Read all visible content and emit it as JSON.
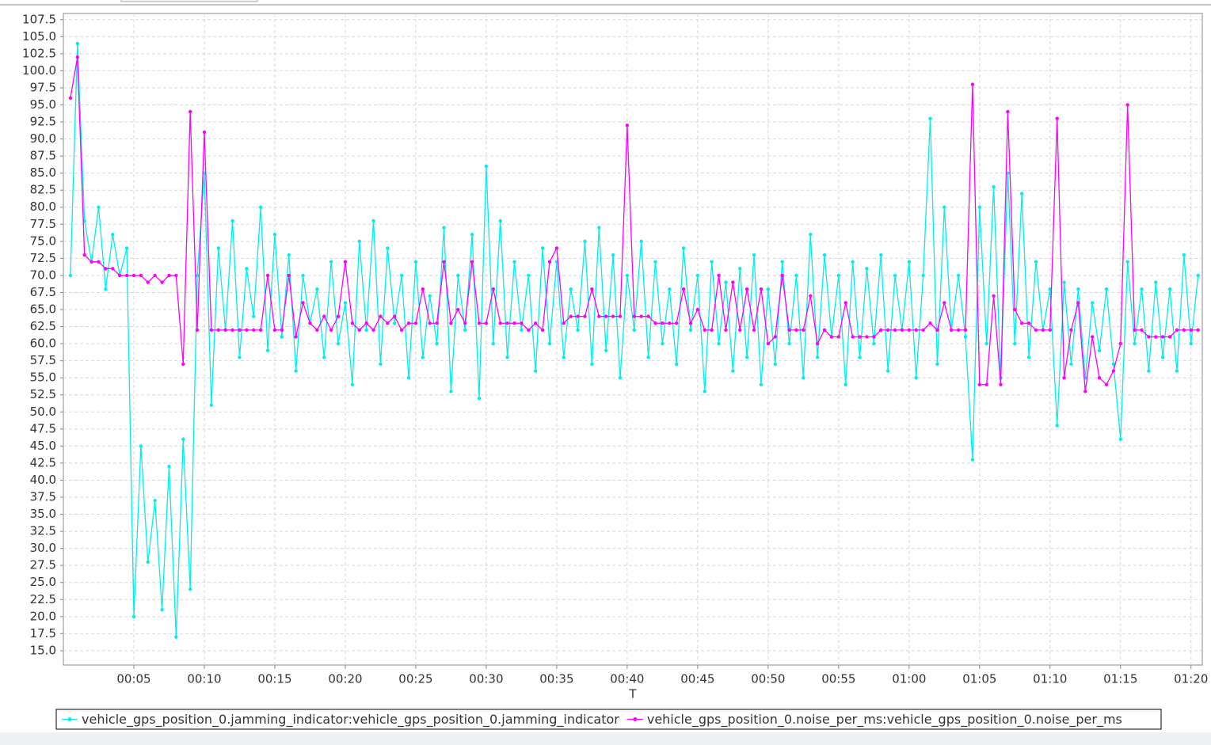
{
  "chart_data": {
    "type": "line",
    "x_label": "T",
    "xlim": [
      0,
      80.8
    ],
    "xticks": [
      {
        "value": 5,
        "label": "00:05"
      },
      {
        "value": 10,
        "label": "00:10"
      },
      {
        "value": 15,
        "label": "00:15"
      },
      {
        "value": 20,
        "label": "00:20"
      },
      {
        "value": 25,
        "label": "00:25"
      },
      {
        "value": 30,
        "label": "00:30"
      },
      {
        "value": 35,
        "label": "00:35"
      },
      {
        "value": 40,
        "label": "00:40"
      },
      {
        "value": 45,
        "label": "00:45"
      },
      {
        "value": 50,
        "label": "00:50"
      },
      {
        "value": 55,
        "label": "00:55"
      },
      {
        "value": 60,
        "label": "01:00"
      },
      {
        "value": 65,
        "label": "01:05"
      },
      {
        "value": 70,
        "label": "01:10"
      },
      {
        "value": 75,
        "label": "01:15"
      },
      {
        "value": 80,
        "label": "01:20"
      }
    ],
    "ylim": [
      12.9,
      108.4
    ],
    "yticks": [
      {
        "value": 15,
        "label": "15.0"
      },
      17.5,
      {
        "value": 20,
        "label": "20.0"
      },
      22.5,
      {
        "value": 25,
        "label": "25.0"
      },
      27.5,
      {
        "value": 30,
        "label": "30.0"
      },
      32.5,
      {
        "value": 35,
        "label": "35.0"
      },
      37.5,
      {
        "value": 40,
        "label": "40.0"
      },
      42.5,
      {
        "value": 45,
        "label": "45.0"
      },
      47.5,
      {
        "value": 50,
        "label": "50.0"
      },
      52.5,
      {
        "value": 55,
        "label": "55.0"
      },
      57.5,
      {
        "value": 60,
        "label": "60.0"
      },
      62.5,
      {
        "value": 65,
        "label": "65.0"
      },
      67.5,
      {
        "value": 70,
        "label": "70.0"
      },
      72.5,
      {
        "value": 75,
        "label": "75.0"
      },
      77.5,
      {
        "value": 80,
        "label": "80.0"
      },
      82.5,
      {
        "value": 85,
        "label": "85.0"
      },
      87.5,
      {
        "value": 90,
        "label": "90.0"
      },
      92.5,
      {
        "value": 95,
        "label": "95.0"
      },
      97.5,
      {
        "value": 100,
        "label": "100.0"
      },
      102.5,
      {
        "value": 105,
        "label": "105.0"
      },
      107.5
    ],
    "grid": true,
    "legend": "bottom",
    "x": [
      0.5,
      1,
      1.5,
      2,
      2.5,
      3,
      3.5,
      4,
      4.5,
      5,
      5.5,
      6,
      6.5,
      7,
      7.5,
      8,
      8.5,
      9,
      9.5,
      10,
      10.5,
      11,
      11.5,
      12,
      12.5,
      13,
      13.5,
      14,
      14.5,
      15,
      15.5,
      16,
      16.5,
      17,
      17.5,
      18,
      18.5,
      19,
      19.5,
      20,
      20.5,
      21,
      21.5,
      22,
      22.5,
      23,
      23.5,
      24,
      24.5,
      25,
      25.5,
      26,
      26.5,
      27,
      27.5,
      28,
      28.5,
      29,
      29.5,
      30,
      30.5,
      31,
      31.5,
      32,
      32.5,
      33,
      33.5,
      34,
      34.5,
      35,
      35.5,
      36,
      36.5,
      37,
      37.5,
      38,
      38.5,
      39,
      39.5,
      40,
      40.5,
      41,
      41.5,
      42,
      42.5,
      43,
      43.5,
      44,
      44.5,
      45,
      45.5,
      46,
      46.5,
      47,
      47.5,
      48,
      48.5,
      49,
      49.5,
      50,
      50.5,
      51,
      51.5,
      52,
      52.5,
      53,
      53.5,
      54,
      54.5,
      55,
      55.5,
      56,
      56.5,
      57,
      57.5,
      58,
      58.5,
      59,
      59.5,
      60,
      60.5,
      61,
      61.5,
      62,
      62.5,
      63,
      63.5,
      64,
      64.5,
      65,
      65.5,
      66,
      66.5,
      67,
      67.5,
      68,
      68.5,
      69,
      69.5,
      70,
      70.5,
      71,
      71.5,
      72,
      72.5,
      73,
      73.5,
      74,
      74.5,
      75,
      75.5,
      76,
      76.5,
      77,
      77.5,
      78,
      78.5,
      79,
      79.5,
      80,
      80.5
    ],
    "series": [
      {
        "name": "vehicle_gps_position_0.jamming_indicator:vehicle_gps_position_0.jamming_indicator",
        "color": "#00eeee",
        "values": [
          70,
          104,
          78,
          72,
          80,
          68,
          76,
          70,
          74,
          20,
          45,
          28,
          37,
          21,
          42,
          17,
          46,
          24,
          70,
          85,
          51,
          74,
          62,
          78,
          58,
          71,
          64,
          80,
          59,
          76,
          61,
          73,
          56,
          70,
          63,
          68,
          58,
          72,
          60,
          66,
          54,
          75,
          62,
          78,
          57,
          74,
          63,
          70,
          55,
          72,
          58,
          67,
          60,
          77,
          53,
          70,
          62,
          76,
          52,
          86,
          60,
          78,
          58,
          72,
          62,
          70,
          56,
          74,
          60,
          72,
          58,
          68,
          62,
          75,
          57,
          77,
          59,
          73,
          55,
          70,
          62,
          75,
          58,
          72,
          60,
          68,
          57,
          74,
          62,
          70,
          53,
          72,
          60,
          69,
          56,
          71,
          58,
          73,
          54,
          68,
          57,
          72,
          60,
          70,
          55,
          76,
          58,
          73,
          61,
          70,
          54,
          72,
          58,
          71,
          60,
          73,
          56,
          70,
          62,
          72,
          55,
          70,
          93,
          57,
          80,
          62,
          70,
          61,
          43,
          80,
          60,
          83,
          55,
          85,
          60,
          82,
          58,
          72,
          62,
          68,
          48,
          69,
          57,
          68,
          55,
          66,
          59,
          68,
          57,
          46,
          72,
          60,
          68,
          56,
          69,
          58,
          68,
          56,
          73,
          60,
          70
        ]
      },
      {
        "name": "vehicle_gps_position_0.noise_per_ms:vehicle_gps_position_0.noise_per_ms",
        "color": "#ff00ff",
        "values": [
          96,
          102,
          73,
          72,
          72,
          71,
          71,
          70,
          70,
          70,
          70,
          69,
          70,
          69,
          70,
          70,
          57,
          94,
          62,
          91,
          62,
          62,
          62,
          62,
          62,
          62,
          62,
          62,
          70,
          62,
          62,
          70,
          61,
          66,
          63,
          62,
          64,
          62,
          64,
          72,
          63,
          62,
          63,
          62,
          64,
          63,
          64,
          62,
          63,
          63,
          68,
          63,
          63,
          72,
          63,
          65,
          63,
          72,
          63,
          63,
          68,
          63,
          63,
          63,
          63,
          62,
          63,
          62,
          72,
          74,
          63,
          64,
          64,
          64,
          68,
          64,
          64,
          64,
          64,
          92,
          64,
          64,
          64,
          63,
          63,
          63,
          63,
          68,
          63,
          65,
          62,
          62,
          70,
          62,
          69,
          62,
          68,
          62,
          68,
          60,
          61,
          70,
          62,
          62,
          62,
          67,
          60,
          62,
          61,
          61,
          66,
          61,
          61,
          61,
          61,
          62,
          62,
          62,
          62,
          62,
          62,
          62,
          63,
          62,
          66,
          62,
          62,
          62,
          98,
          54,
          54,
          67,
          54,
          94,
          65,
          63,
          63,
          62,
          62,
          62,
          93,
          55,
          62,
          66,
          53,
          61,
          55,
          54,
          56,
          60,
          95,
          62,
          62,
          61,
          61,
          61,
          61,
          62,
          62,
          62,
          62
        ]
      }
    ]
  }
}
